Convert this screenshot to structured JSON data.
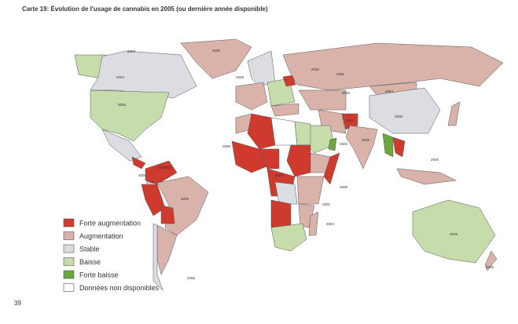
{
  "title": "Carte 19: Évolution de l'usage de cannabis en  2005 (ou dernière année disponible)",
  "legend": [
    {
      "label": "Forte augmentation",
      "color": "#cf3a2e"
    },
    {
      "label": "Augmentation",
      "color": "#d9b3aa"
    },
    {
      "label": "Stable",
      "color": "#dcdde3"
    },
    {
      "label": "Baisse",
      "color": "#c6dcab"
    },
    {
      "label": "Forte baisse",
      "color": "#6aa83c"
    },
    {
      "label": "Données non disponibles",
      "color": "#ffffff"
    }
  ],
  "year_labels": [
    "2005",
    "2004",
    "2005",
    "2005",
    "2005",
    "2003",
    "2005",
    "2004",
    "2005",
    "2004",
    "2005",
    "2005",
    "2004",
    "2002",
    "2005",
    "2004",
    "2004",
    "2003",
    "2005",
    "2005",
    "2005",
    "2001",
    "2004",
    "2005",
    "2005",
    "2005",
    "2005"
  ],
  "page_number": "39"
}
